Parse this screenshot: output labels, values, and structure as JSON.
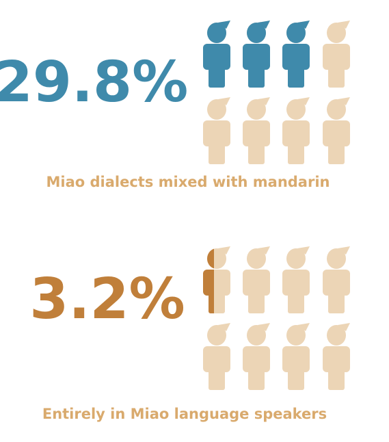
{
  "chart_data": [
    {
      "type": "pictograph",
      "values": [
        29.8
      ],
      "value_labels": [
        "29.8%"
      ],
      "caption": "Miao dialects mixed with mandarin",
      "color": "#3f8aab",
      "empty_color": "#ecd5b6",
      "caption_color": "#d9aa6d",
      "icons": 8,
      "icons_filled": 3
    },
    {
      "type": "pictograph",
      "values": [
        3.2
      ],
      "value_labels": [
        "3.2%"
      ],
      "caption": "Entirely in Miao language speakers",
      "color": "#c07f3a",
      "empty_color": "#ecd5b6",
      "caption_color": "#d9aa6d",
      "icons": 8,
      "icons_filled": 0.4
    }
  ]
}
